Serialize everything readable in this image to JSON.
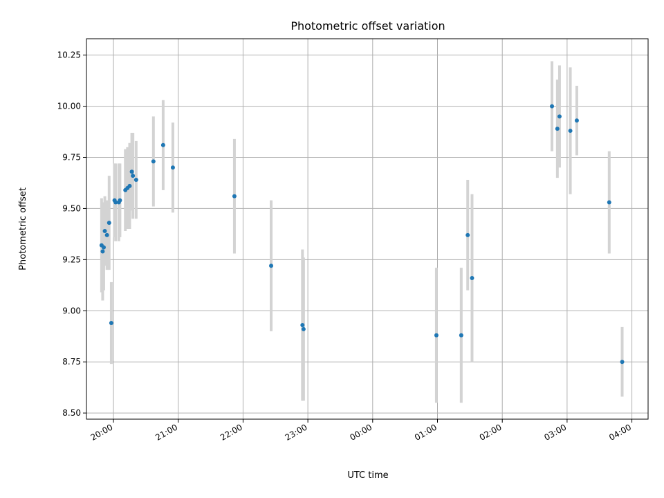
{
  "chart_data": {
    "type": "scatter",
    "title": "Photometric offset variation",
    "xlabel": "UTC time",
    "ylabel": "Photometric offset",
    "x_axis": "time",
    "xlim": [
      "19:35",
      "04:15"
    ],
    "ylim": [
      8.47,
      10.33
    ],
    "x_ticks": [
      "20:00",
      "21:00",
      "22:00",
      "23:00",
      "00:00",
      "01:00",
      "02:00",
      "03:00",
      "04:00"
    ],
    "y_ticks": [
      8.5,
      8.75,
      9.0,
      9.25,
      9.5,
      9.75,
      10.0,
      10.25
    ],
    "grid": true,
    "marker_color": "#1f77b4",
    "errorbar_color": "#d3d3d3",
    "points": [
      {
        "x": "19:49",
        "y": 9.32,
        "err": 0.23
      },
      {
        "x": "19:50",
        "y": 9.29,
        "err": 0.24
      },
      {
        "x": "19:51",
        "y": 9.31,
        "err": 0.21
      },
      {
        "x": "19:52",
        "y": 9.39,
        "err": 0.17
      },
      {
        "x": "19:54",
        "y": 9.37,
        "err": 0.17
      },
      {
        "x": "19:56",
        "y": 9.43,
        "err": 0.23
      },
      {
        "x": "19:58",
        "y": 8.94,
        "err": 0.2
      },
      {
        "x": "20:01",
        "y": 9.54,
        "err": 0.18
      },
      {
        "x": "20:02",
        "y": 9.53,
        "err": 0.19
      },
      {
        "x": "20:05",
        "y": 9.53,
        "err": 0.19
      },
      {
        "x": "20:06",
        "y": 9.54,
        "err": 0.18
      },
      {
        "x": "20:11",
        "y": 9.59,
        "err": 0.2
      },
      {
        "x": "20:13",
        "y": 9.6,
        "err": 0.2
      },
      {
        "x": "20:15",
        "y": 9.61,
        "err": 0.21
      },
      {
        "x": "20:17",
        "y": 9.68,
        "err": 0.19
      },
      {
        "x": "20:18",
        "y": 9.66,
        "err": 0.21
      },
      {
        "x": "20:21",
        "y": 9.64,
        "err": 0.19
      },
      {
        "x": "20:37",
        "y": 9.73,
        "err": 0.22
      },
      {
        "x": "20:46",
        "y": 9.81,
        "err": 0.22
      },
      {
        "x": "20:55",
        "y": 9.7,
        "err": 0.22
      },
      {
        "x": "21:52",
        "y": 9.56,
        "err": 0.28
      },
      {
        "x": "22:26",
        "y": 9.22,
        "err": 0.32
      },
      {
        "x": "22:55",
        "y": 8.93,
        "err": 0.37
      },
      {
        "x": "22:56",
        "y": 8.91,
        "err": 0.35
      },
      {
        "x": "00:59",
        "y": 8.88,
        "err": 0.33
      },
      {
        "x": "01:22",
        "y": 8.88,
        "err": 0.33
      },
      {
        "x": "01:28",
        "y": 9.37,
        "err": 0.27
      },
      {
        "x": "01:32",
        "y": 9.16,
        "err": 0.41
      },
      {
        "x": "02:46",
        "y": 10.0,
        "err": 0.22
      },
      {
        "x": "02:51",
        "y": 9.89,
        "err": 0.24
      },
      {
        "x": "02:53",
        "y": 9.95,
        "err": 0.25
      },
      {
        "x": "03:03",
        "y": 9.88,
        "err": 0.31
      },
      {
        "x": "03:09",
        "y": 9.93,
        "err": 0.17
      },
      {
        "x": "03:39",
        "y": 9.53,
        "err": 0.25
      },
      {
        "x": "03:51",
        "y": 8.75,
        "err": 0.17
      }
    ]
  }
}
